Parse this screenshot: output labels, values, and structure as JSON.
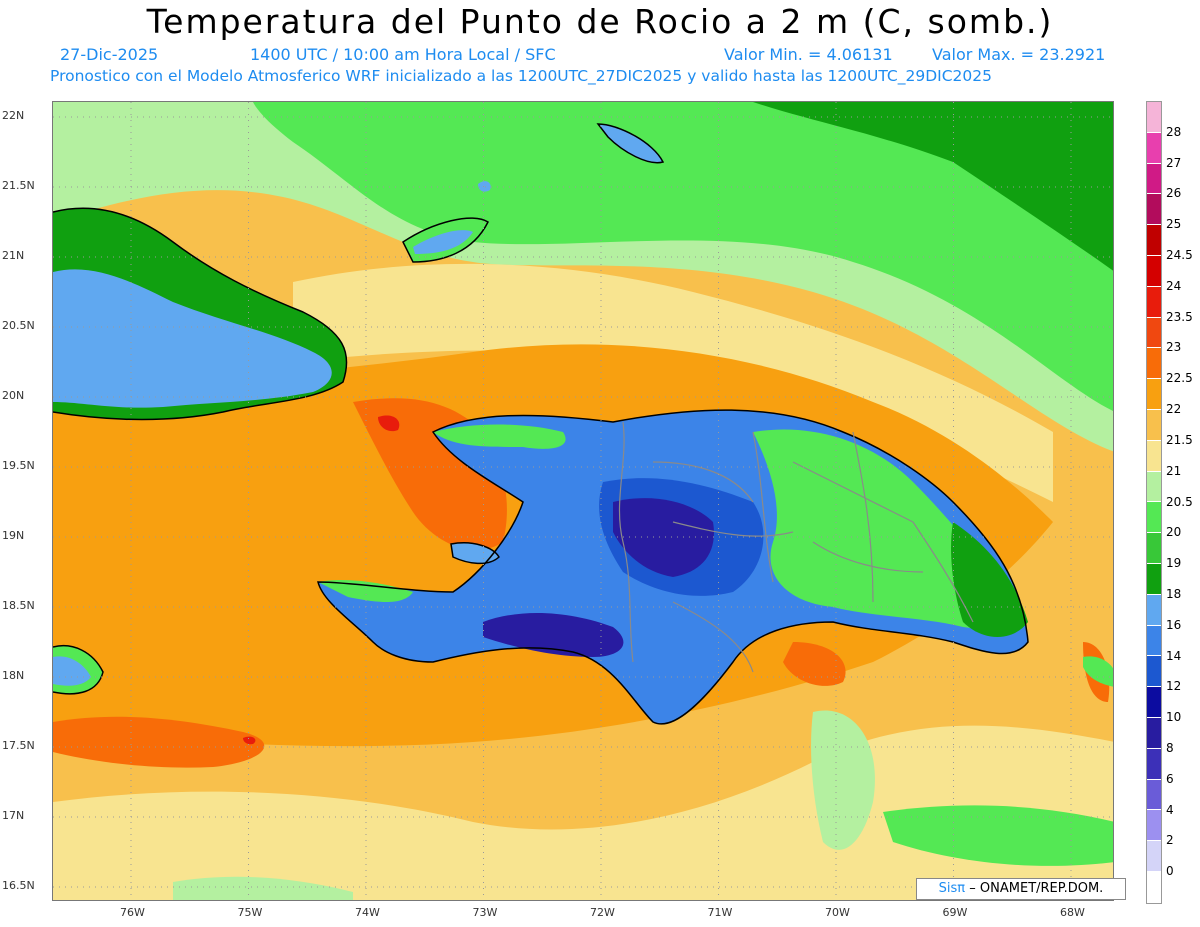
{
  "header": {
    "title": "Temperatura del Punto de Rocio a 2 m (C, somb.)",
    "date": "27-Dic-2025",
    "time": "1400 UTC / 10:00 am Hora Local / SFC",
    "min_value": "Valor Min. = 4.06131",
    "max_value": "Valor Max. = 23.2921",
    "model_line": "Pronostico con el Modelo Atmosferico WRF inicializado a las 1200UTC_27DIC2025 y valido hasta las  1200UTC_29DIC2025"
  },
  "axes": {
    "lat_labels": [
      "22N",
      "21.5N",
      "21N",
      "20.5N",
      "20N",
      "19.5N",
      "19N",
      "18.5N",
      "18N",
      "17.5N",
      "17N",
      "16.5N"
    ],
    "lon_labels": [
      "76W",
      "75W",
      "74W",
      "73W",
      "72W",
      "71W",
      "70W",
      "69W",
      "68W"
    ]
  },
  "colorbar": {
    "labels": [
      "28",
      "27",
      "26",
      "25",
      "24.5",
      "24",
      "23.5",
      "23",
      "22.5",
      "22",
      "21.5",
      "21",
      "20.5",
      "20",
      "19",
      "18",
      "16",
      "14",
      "12",
      "10",
      "8",
      "6",
      "4",
      "2",
      "0"
    ],
    "colors_top_to_bottom": [
      "#f5b4d8",
      "#e83fae",
      "#d01a86",
      "#b20c5c",
      "#c00000",
      "#d40000",
      "#e81c0c",
      "#f04810",
      "#f86c08",
      "#f8a010",
      "#f8c04c",
      "#f8e490",
      "#b4f0a0",
      "#54e854",
      "#38c838",
      "#10a010",
      "#60a8f0",
      "#3c84e8",
      "#1c58d0",
      "#0c0ca0",
      "#281ca0",
      "#3c30b8",
      "#6a5cd8",
      "#9c90f0",
      "#d4d4f8",
      "#ffffff"
    ]
  },
  "map_colors": {
    "ocean_far": "#f8c04c",
    "ocean_mid": "#f8a010",
    "ocean_hot": "#f86c08",
    "hot_spot": "#e81c0c",
    "pale": "#f8e490",
    "lightgreen": "#b4f0a0",
    "green": "#54e854",
    "darkgreen": "#10a010",
    "landblue": "#60a8f0",
    "blue": "#3c84e8",
    "deepblue": "#1c58d0",
    "indigo": "#281ca0",
    "coast": "#000000",
    "borders": "#8a8a8a"
  },
  "credit": {
    "logo": "Sisπ",
    "text": "– ONAMET/REP.DOM."
  }
}
